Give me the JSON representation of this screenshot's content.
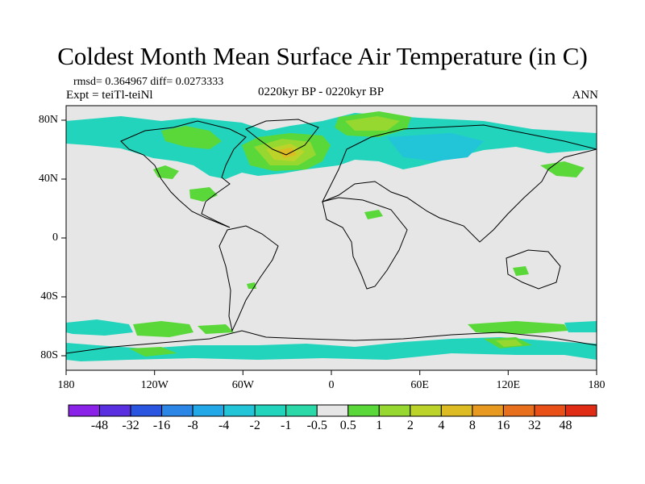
{
  "title": "Coldest Month Mean Surface Air Temperature (in C)",
  "stats_text": "rmsd= 0.364967 diff= 0.0273333",
  "experiment_text": "Expt = teiTl-teiNl",
  "period_text": "0220kyr BP - 0220kyr BP",
  "season_text": "ANN",
  "y_axis": {
    "ticks": [
      "80N",
      "40N",
      "0",
      "40S",
      "80S"
    ]
  },
  "x_axis": {
    "ticks": [
      "180",
      "120W",
      "60W",
      "0",
      "60E",
      "120E",
      "180"
    ]
  },
  "colorbar": {
    "labels": [
      "-48",
      "-32",
      "-16",
      "-8",
      "-4",
      "-2",
      "-1",
      "-0.5",
      "0.5",
      "1",
      "2",
      "4",
      "8",
      "16",
      "32",
      "48"
    ],
    "colors": [
      "#8a22e8",
      "#5a2fe0",
      "#2a55e0",
      "#2c86e6",
      "#22a8e6",
      "#22c4d8",
      "#22d4bc",
      "#2ad8a8",
      "#e6e6e6",
      "#5ad83a",
      "#96d830",
      "#bcd42a",
      "#dcbc22",
      "#e89a20",
      "#e8701c",
      "#e85018",
      "#e02c14"
    ]
  },
  "map_colors": {
    "background": "#e6e6e6",
    "cyan": "#22d4bc",
    "aqua": "#22c4d8",
    "green": "#5ad83a",
    "yellowgreen": "#96d830",
    "lime": "#bcd42a",
    "orange": "#dcbc22"
  }
}
